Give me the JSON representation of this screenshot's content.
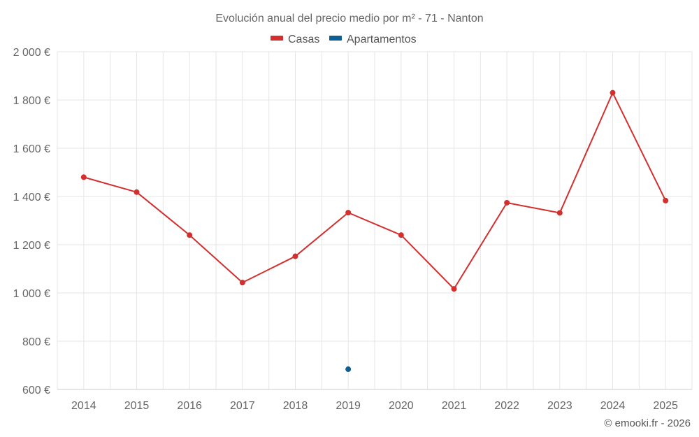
{
  "chart_data": {
    "type": "line",
    "title": "Evolución anual del precio medio por m² - 71 - Nanton",
    "categories": [
      "2014",
      "2015",
      "2016",
      "2017",
      "2018",
      "2019",
      "2020",
      "2021",
      "2022",
      "2023",
      "2024",
      "2025"
    ],
    "series": [
      {
        "name": "Casas",
        "color": "#d32f2f",
        "values": [
          1480,
          1418,
          1240,
          1043,
          1152,
          1333,
          1240,
          1017,
          1374,
          1332,
          1830,
          1383
        ]
      },
      {
        "name": "Apartamentos",
        "color": "#0d5f94",
        "values": [
          null,
          null,
          null,
          null,
          null,
          684,
          null,
          null,
          null,
          null,
          null,
          null
        ]
      }
    ],
    "ylim": [
      600,
      2000
    ],
    "yticks": [
      600,
      800,
      1000,
      1200,
      1400,
      1600,
      1800,
      2000
    ],
    "ytick_labels": [
      "600 €",
      "800 €",
      "1 000 €",
      "1 200 €",
      "1 400 €",
      "1 600 €",
      "1 800 €",
      "2 000 €"
    ],
    "xlabel": "",
    "ylabel": "",
    "grid": true,
    "legend_position": "top-center"
  },
  "credit": "© emooki.fr - 2026"
}
